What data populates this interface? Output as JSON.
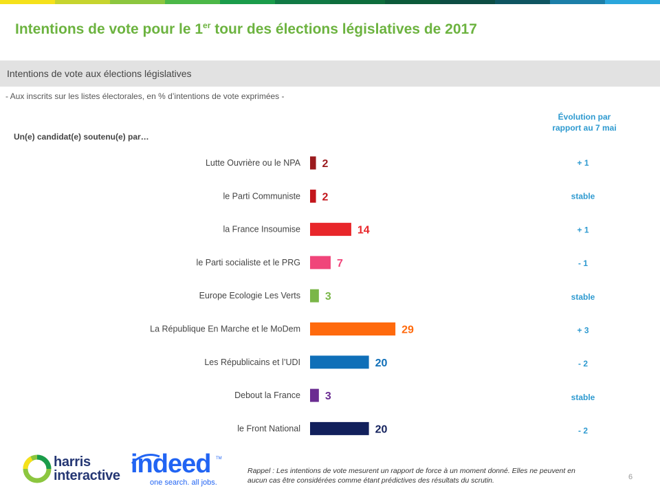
{
  "header": {
    "title_pre": "Intentions de vote pour le 1",
    "title_sup": "er",
    "title_post": " tour des élections législatives de 2017",
    "section_label": "Intentions de vote aux élections législatives",
    "subtitle": "- Aux inscrits sur les listes électorales, en % d’intentions de vote exprimées -"
  },
  "evolution_header": {
    "line1": "Évolution par",
    "line2": "rapport au 7 mai"
  },
  "group_label": "Un(e) candidat(e) soutenu(e) par…",
  "stripe_colors": [
    "#f5e11a",
    "#c6d42e",
    "#8cc63f",
    "#4cb848",
    "#1a9c4b",
    "#117a45",
    "#0e6d3c",
    "#0c5a3a",
    "#0d4d44",
    "#0f5561",
    "#1c7fa8",
    "#2aa6dc"
  ],
  "chart_data": {
    "type": "bar",
    "orientation": "horizontal",
    "categories": [
      "Lutte Ouvrière ou le NPA",
      "le Parti Communiste",
      "la France Insoumise",
      "le Parti socialiste et le PRG",
      "Europe Ecologie Les Verts",
      "La République En Marche et le MoDem",
      "Les Républicains et l’UDI",
      "Debout la France",
      "le Front National"
    ],
    "values": [
      2,
      2,
      14,
      7,
      3,
      29,
      20,
      3,
      20
    ],
    "value_labels": [
      "2",
      "2",
      "14",
      "7",
      "3",
      "29",
      "20",
      "3",
      "20"
    ],
    "colors": [
      "#9b1b1e",
      "#c3161c",
      "#e8262a",
      "#f0457a",
      "#7ab648",
      "#ff6a0d",
      "#0f6fb8",
      "#6a2c91",
      "#12205c"
    ],
    "evolution": [
      "+ 1",
      "stable",
      "+ 1",
      "- 1",
      "stable",
      "+ 3",
      "- 2",
      "stable",
      "- 2"
    ],
    "xlim": [
      0,
      30
    ]
  },
  "footer": {
    "harris_line1": "harris",
    "harris_line2": "interactive",
    "indeed_word": "indeed",
    "indeed_tagline": "one search. all jobs.",
    "indeed_tm": "TM",
    "footnote": "Rappel : Les intentions de vote mesurent un rapport de force à un moment donné. Elles ne peuvent en aucun cas être considérées comme étant prédictives des résultats du scrutin.",
    "page_number": "6"
  }
}
